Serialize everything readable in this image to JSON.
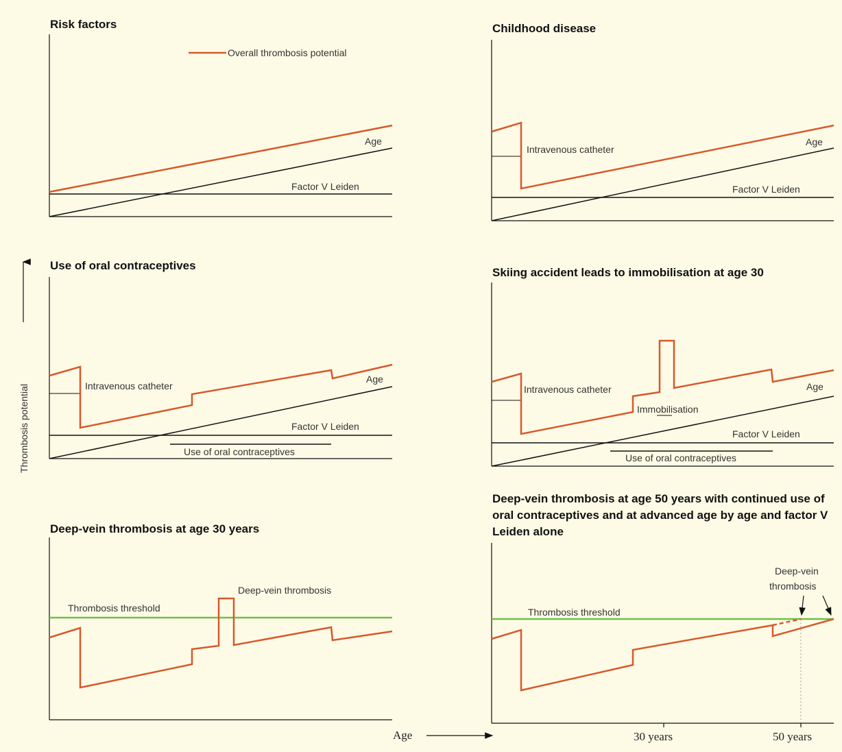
{
  "colors": {
    "background": "#fdfbe6",
    "overall_line": "#d8582c",
    "black_line": "#111111",
    "threshold_line": "#6ec04a"
  },
  "axes": {
    "y_label": "Thrombosis potential",
    "x_label": "Age"
  },
  "panels": [
    {
      "title": "Risk factors",
      "legend": "Overall thrombosis potential",
      "labels": {
        "age": "Age",
        "factor_v": "Factor V Leiden"
      }
    },
    {
      "title": "Childhood disease",
      "labels": {
        "catheter": "Intravenous catheter",
        "age": "Age",
        "factor_v": "Factor V Leiden"
      }
    },
    {
      "title": "Use of oral contraceptives",
      "labels": {
        "catheter": "Intravenous catheter",
        "age": "Age",
        "factor_v": "Factor V Leiden",
        "oc": "Use of oral contraceptives"
      }
    },
    {
      "title": "Skiing accident leads to immobilisation at age 30",
      "labels": {
        "catheter": "Intravenous catheter",
        "immob": "Immobilisation",
        "age": "Age",
        "factor_v": "Factor V Leiden",
        "oc": "Use of oral contraceptives"
      }
    },
    {
      "title": "Deep-vein thrombosis at age 30 years",
      "labels": {
        "dvt": "Deep-vein thrombosis",
        "threshold": "Thrombosis threshold"
      }
    },
    {
      "title": "Deep-vein thrombosis at age 50 years with continued use of oral contraceptives and at advanced age by age and factor V Leiden alone",
      "labels": {
        "dvt_line1": "Deep-vein",
        "dvt_line2": "thrombosis",
        "threshold": "Thrombosis threshold",
        "tick_30": "30 years",
        "tick_50": "50 years"
      }
    }
  ]
}
